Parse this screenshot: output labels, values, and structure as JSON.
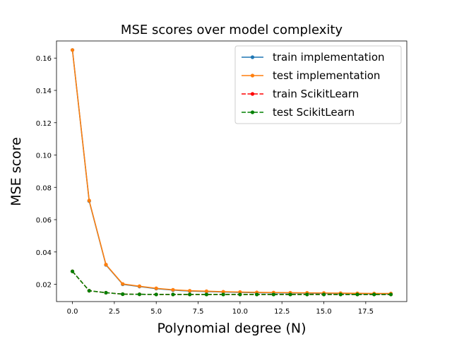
{
  "chart_data": {
    "type": "line",
    "title": "MSE scores over model complexity",
    "xlabel": "Polynomial degree (N)",
    "ylabel": "MSE score",
    "xlim": [
      -0.95,
      19.95
    ],
    "ylim": [
      0.0093,
      0.1706
    ],
    "xticks": [
      0.0,
      2.5,
      5.0,
      7.5,
      10.0,
      12.5,
      15.0,
      17.5
    ],
    "xtick_labels": [
      "0.0",
      "2.5",
      "5.0",
      "7.5",
      "10.0",
      "12.5",
      "15.0",
      "17.5"
    ],
    "yticks": [
      0.02,
      0.04,
      0.06,
      0.08,
      0.1,
      0.12,
      0.14,
      0.16
    ],
    "ytick_labels": [
      "0.02",
      "0.04",
      "0.06",
      "0.08",
      "0.10",
      "0.12",
      "0.14",
      "0.16"
    ],
    "grid": false,
    "legend_position": "top-right",
    "x": [
      0,
      1,
      2,
      3,
      4,
      5,
      6,
      7,
      8,
      9,
      10,
      11,
      12,
      13,
      14,
      15,
      16,
      17,
      18,
      19
    ],
    "series": [
      {
        "name": "train implementation",
        "color": "#1f77b4",
        "style": "solid",
        "values": [
          0.165,
          0.0715,
          0.032,
          0.02,
          0.0186,
          0.0173,
          0.0164,
          0.0158,
          0.0155,
          0.0152,
          0.015,
          0.0148,
          0.0147,
          0.0146,
          0.0145,
          0.0144,
          0.0143,
          0.0142,
          0.0141,
          0.0141
        ]
      },
      {
        "name": "test implementation",
        "color": "#ff7f0e",
        "style": "solid",
        "values": [
          0.165,
          0.0718,
          0.0322,
          0.0202,
          0.0188,
          0.0175,
          0.0166,
          0.016,
          0.0157,
          0.0154,
          0.0152,
          0.015,
          0.0149,
          0.0148,
          0.0147,
          0.0146,
          0.0145,
          0.0144,
          0.0143,
          0.0143
        ]
      },
      {
        "name": "train ScikitLearn",
        "color": "#ff0000",
        "style": "dashed",
        "values": [
          0.028,
          0.016,
          0.0148,
          0.0139,
          0.0138,
          0.0137,
          0.0137,
          0.0137,
          0.0137,
          0.0137,
          0.0137,
          0.0137,
          0.0137,
          0.0137,
          0.0137,
          0.0137,
          0.0137,
          0.0137,
          0.0137,
          0.0137
        ]
      },
      {
        "name": "test ScikitLearn",
        "color": "#008000",
        "style": "dashed",
        "values": [
          0.028,
          0.016,
          0.0148,
          0.0139,
          0.0138,
          0.0137,
          0.0137,
          0.0137,
          0.0137,
          0.0137,
          0.0137,
          0.0137,
          0.0137,
          0.0137,
          0.0137,
          0.0137,
          0.0137,
          0.0137,
          0.0137,
          0.0137
        ]
      }
    ]
  }
}
